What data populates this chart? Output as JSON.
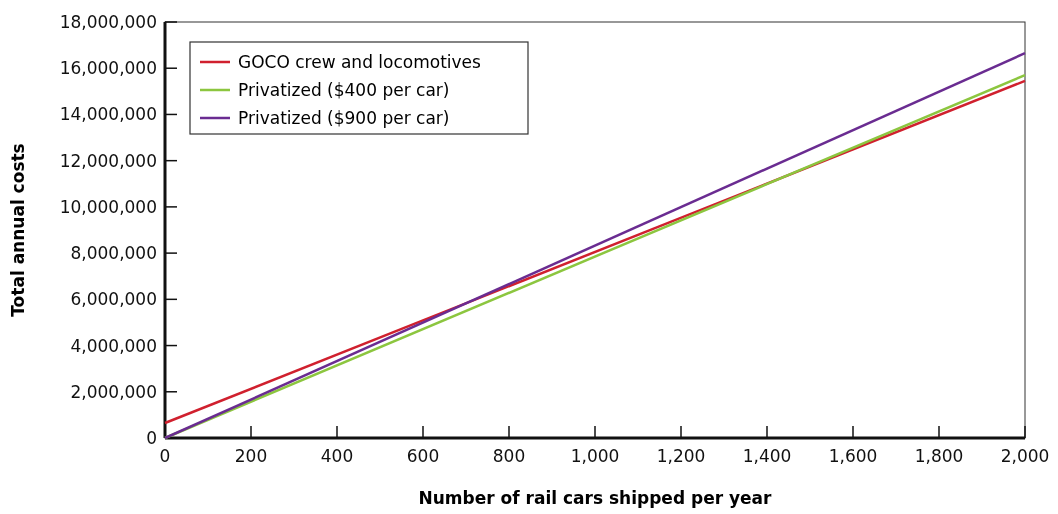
{
  "chart_data": {
    "type": "line",
    "xlabel": "Number of rail cars shipped per year",
    "ylabel": "Total annual costs",
    "xlim": [
      0,
      2000
    ],
    "xticks": [
      0,
      200,
      400,
      600,
      800,
      {
        "value": 1000,
        "label": "1,000"
      },
      {
        "value": 1200,
        "label": "1,200"
      },
      {
        "value": 1400,
        "label": "1,400"
      },
      {
        "value": 1600,
        "label": "1,600"
      },
      {
        "value": 1800,
        "label": "1,800"
      },
      {
        "value": 2000,
        "label": "2,000"
      }
    ],
    "ylim": [
      0,
      18000000
    ],
    "yticks": [
      0,
      {
        "value": 2000000,
        "label": "2,000,000"
      },
      {
        "value": 4000000,
        "label": "4,000,000"
      },
      {
        "value": 6000000,
        "label": "6,000,000"
      },
      {
        "value": 8000000,
        "label": "8,000,000"
      },
      {
        "value": 10000000,
        "label": "10,000,000"
      },
      {
        "value": 12000000,
        "label": "12,000,000"
      },
      {
        "value": 14000000,
        "label": "14,000,000"
      },
      {
        "value": 16000000,
        "label": "16,000,000"
      },
      {
        "value": 18000000,
        "label": "18,000,000"
      }
    ],
    "x": [
      0,
      2000
    ],
    "legend": "top left",
    "grid": false,
    "marker": "none",
    "series": [
      {
        "name": "GOCO crew and locomotives",
        "color": "#d0202e",
        "values": [
          650000,
          15450000
        ]
      },
      {
        "name": "Privatized ($400 per car)",
        "color": "#8cc63f",
        "values": [
          0,
          15700000
        ]
      },
      {
        "name": "Privatized ($900 per car)",
        "color": "#6a2c91",
        "values": [
          0,
          16650000
        ]
      }
    ]
  }
}
